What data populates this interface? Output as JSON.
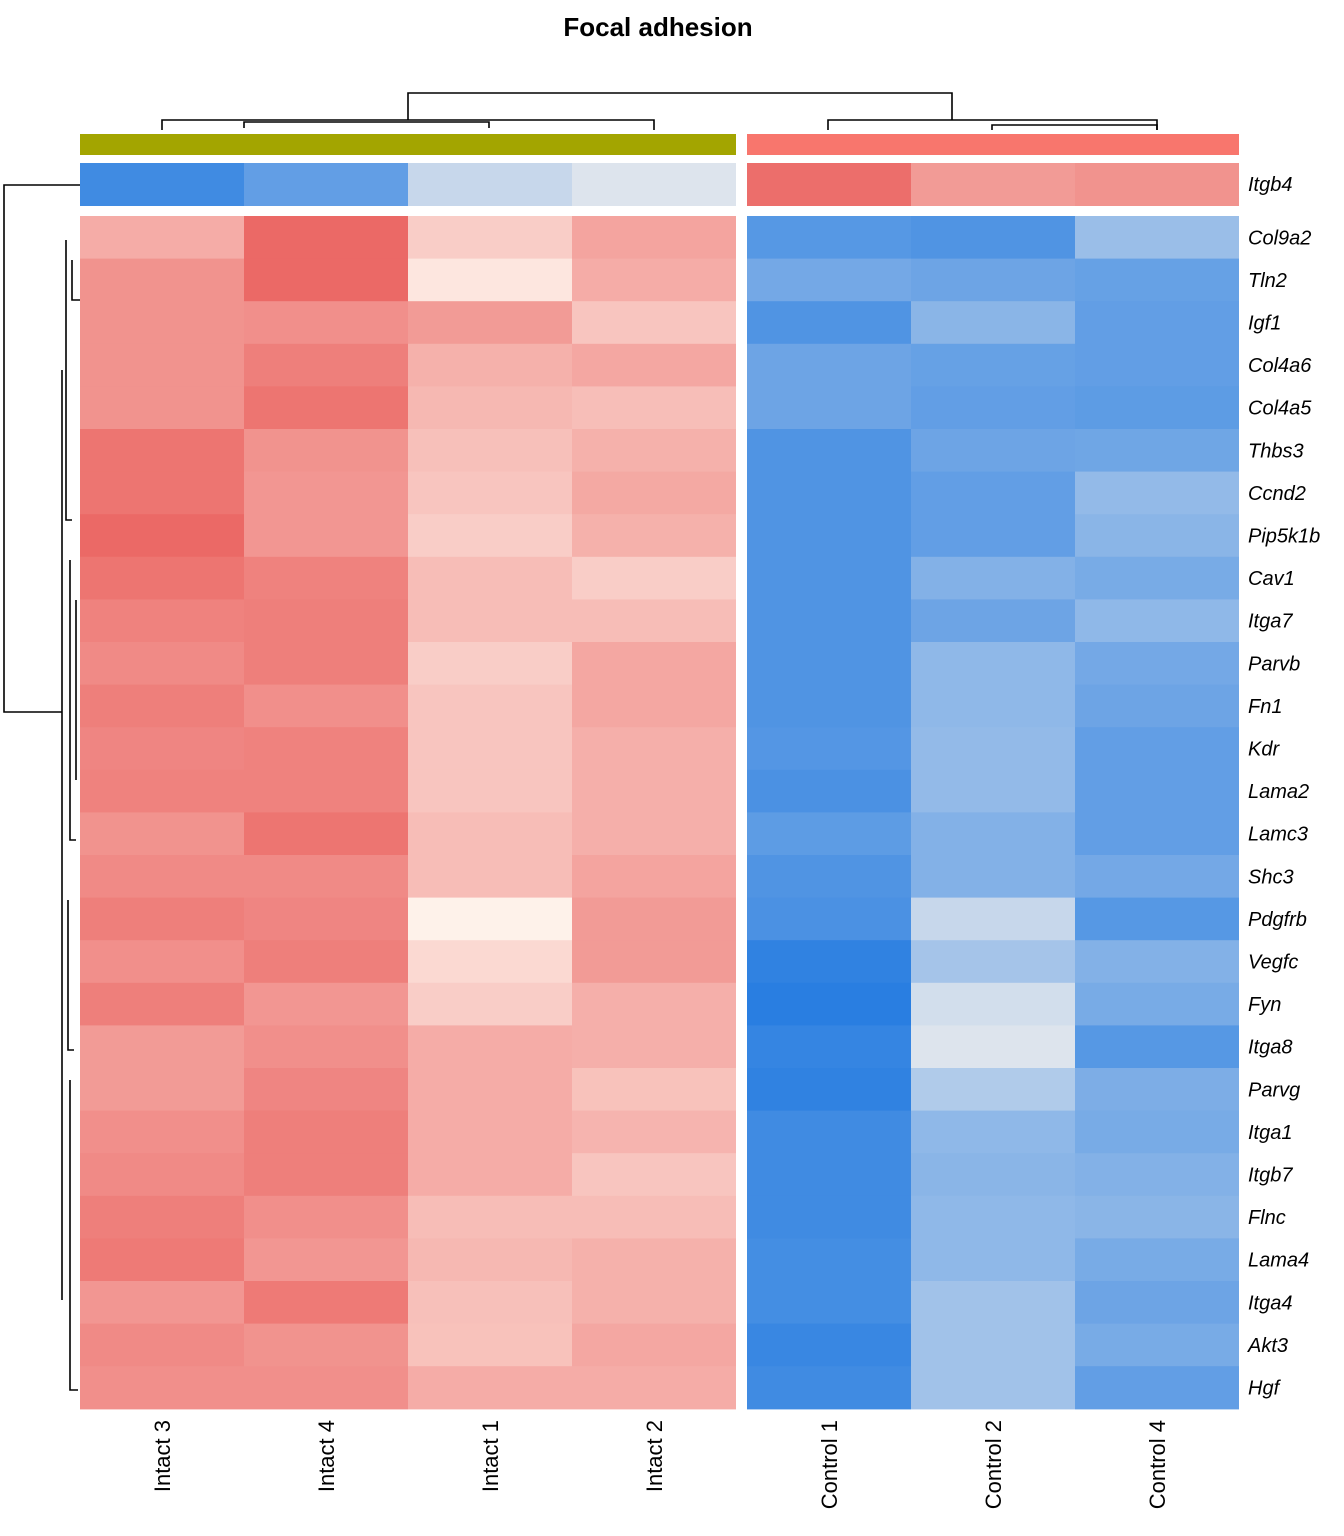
{
  "chart_data": {
    "type": "heatmap",
    "title": "Focal adhesion",
    "columns": [
      "Intact 3",
      "Intact 4",
      "Intact 1",
      "Intact 2",
      "Control 1",
      "Control 2",
      "Control 4"
    ],
    "column_groups": [
      {
        "name": "Intact",
        "color": "#A3A500",
        "columns": [
          "Intact 3",
          "Intact 4",
          "Intact 1",
          "Intact 2"
        ]
      },
      {
        "name": "Control",
        "color": "#F8766D",
        "columns": [
          "Control 1",
          "Control 2",
          "Control 4"
        ]
      }
    ],
    "annotation_row": {
      "name": "Itgb4",
      "values": [
        -0.85,
        -0.7,
        -0.25,
        -0.15,
        0.82,
        0.55,
        0.6
      ]
    },
    "rows": [
      "Col9a2",
      "Tln2",
      "Igf1",
      "Col4a6",
      "Col4a5",
      "Thbs3",
      "Ccnd2",
      "Pip5k1b",
      "Cav1",
      "Itga7",
      "Parvb",
      "Fn1",
      "Kdr",
      "Lama2",
      "Lamc3",
      "Shc3",
      "Pdgfrb",
      "Vegfc",
      "Fyn",
      "Itga8",
      "Parvg",
      "Itga1",
      "Itgb7",
      "Flnc",
      "Lama4",
      "Itga4",
      "Akt3",
      "Hgf"
    ],
    "values": [
      [
        0.45,
        0.85,
        0.25,
        0.5,
        -0.75,
        -0.78,
        -0.45
      ],
      [
        0.6,
        0.85,
        0.1,
        0.45,
        -0.62,
        -0.65,
        -0.68
      ],
      [
        0.6,
        0.62,
        0.55,
        0.3,
        -0.78,
        -0.52,
        -0.7
      ],
      [
        0.6,
        0.72,
        0.42,
        0.48,
        -0.65,
        -0.68,
        -0.7
      ],
      [
        0.6,
        0.78,
        0.38,
        0.34,
        -0.65,
        -0.7,
        -0.72
      ],
      [
        0.78,
        0.6,
        0.33,
        0.42,
        -0.78,
        -0.65,
        -0.64
      ],
      [
        0.78,
        0.58,
        0.3,
        0.47,
        -0.78,
        -0.7,
        -0.48
      ],
      [
        0.85,
        0.58,
        0.25,
        0.42,
        -0.78,
        -0.7,
        -0.52
      ],
      [
        0.78,
        0.7,
        0.35,
        0.25,
        -0.78,
        -0.55,
        -0.6
      ],
      [
        0.7,
        0.72,
        0.35,
        0.35,
        -0.78,
        -0.65,
        -0.5
      ],
      [
        0.65,
        0.72,
        0.25,
        0.48,
        -0.78,
        -0.5,
        -0.62
      ],
      [
        0.72,
        0.62,
        0.3,
        0.48,
        -0.78,
        -0.5,
        -0.65
      ],
      [
        0.68,
        0.7,
        0.3,
        0.43,
        -0.76,
        -0.48,
        -0.7
      ],
      [
        0.7,
        0.7,
        0.3,
        0.43,
        -0.8,
        -0.48,
        -0.7
      ],
      [
        0.6,
        0.78,
        0.35,
        0.43,
        -0.72,
        -0.55,
        -0.7
      ],
      [
        0.65,
        0.65,
        0.35,
        0.5,
        -0.78,
        -0.55,
        -0.62
      ],
      [
        0.72,
        0.68,
        0.03,
        0.55,
        -0.8,
        -0.25,
        -0.75
      ],
      [
        0.62,
        0.72,
        0.18,
        0.55,
        -0.92,
        -0.4,
        -0.55
      ],
      [
        0.72,
        0.58,
        0.25,
        0.43,
        -0.95,
        -0.2,
        -0.6
      ],
      [
        0.55,
        0.62,
        0.45,
        0.43,
        -0.9,
        -0.15,
        -0.75
      ],
      [
        0.55,
        0.68,
        0.45,
        0.32,
        -0.92,
        -0.35,
        -0.58
      ],
      [
        0.62,
        0.72,
        0.45,
        0.4,
        -0.85,
        -0.5,
        -0.6
      ],
      [
        0.65,
        0.72,
        0.45,
        0.3,
        -0.85,
        -0.52,
        -0.55
      ],
      [
        0.72,
        0.62,
        0.35,
        0.35,
        -0.85,
        -0.5,
        -0.52
      ],
      [
        0.75,
        0.58,
        0.38,
        0.42,
        -0.83,
        -0.5,
        -0.6
      ],
      [
        0.58,
        0.75,
        0.33,
        0.42,
        -0.83,
        -0.42,
        -0.65
      ],
      [
        0.65,
        0.6,
        0.32,
        0.48,
        -0.88,
        -0.42,
        -0.6
      ],
      [
        0.62,
        0.62,
        0.45,
        0.45,
        -0.85,
        -0.42,
        -0.7
      ]
    ],
    "color_scale": {
      "low": "#1E78E0",
      "mid": "#FFF7EF",
      "high": "#E8504E",
      "domain": [
        -1,
        0,
        1
      ]
    },
    "row_dendrogram": "left",
    "column_dendrogram": "top"
  }
}
